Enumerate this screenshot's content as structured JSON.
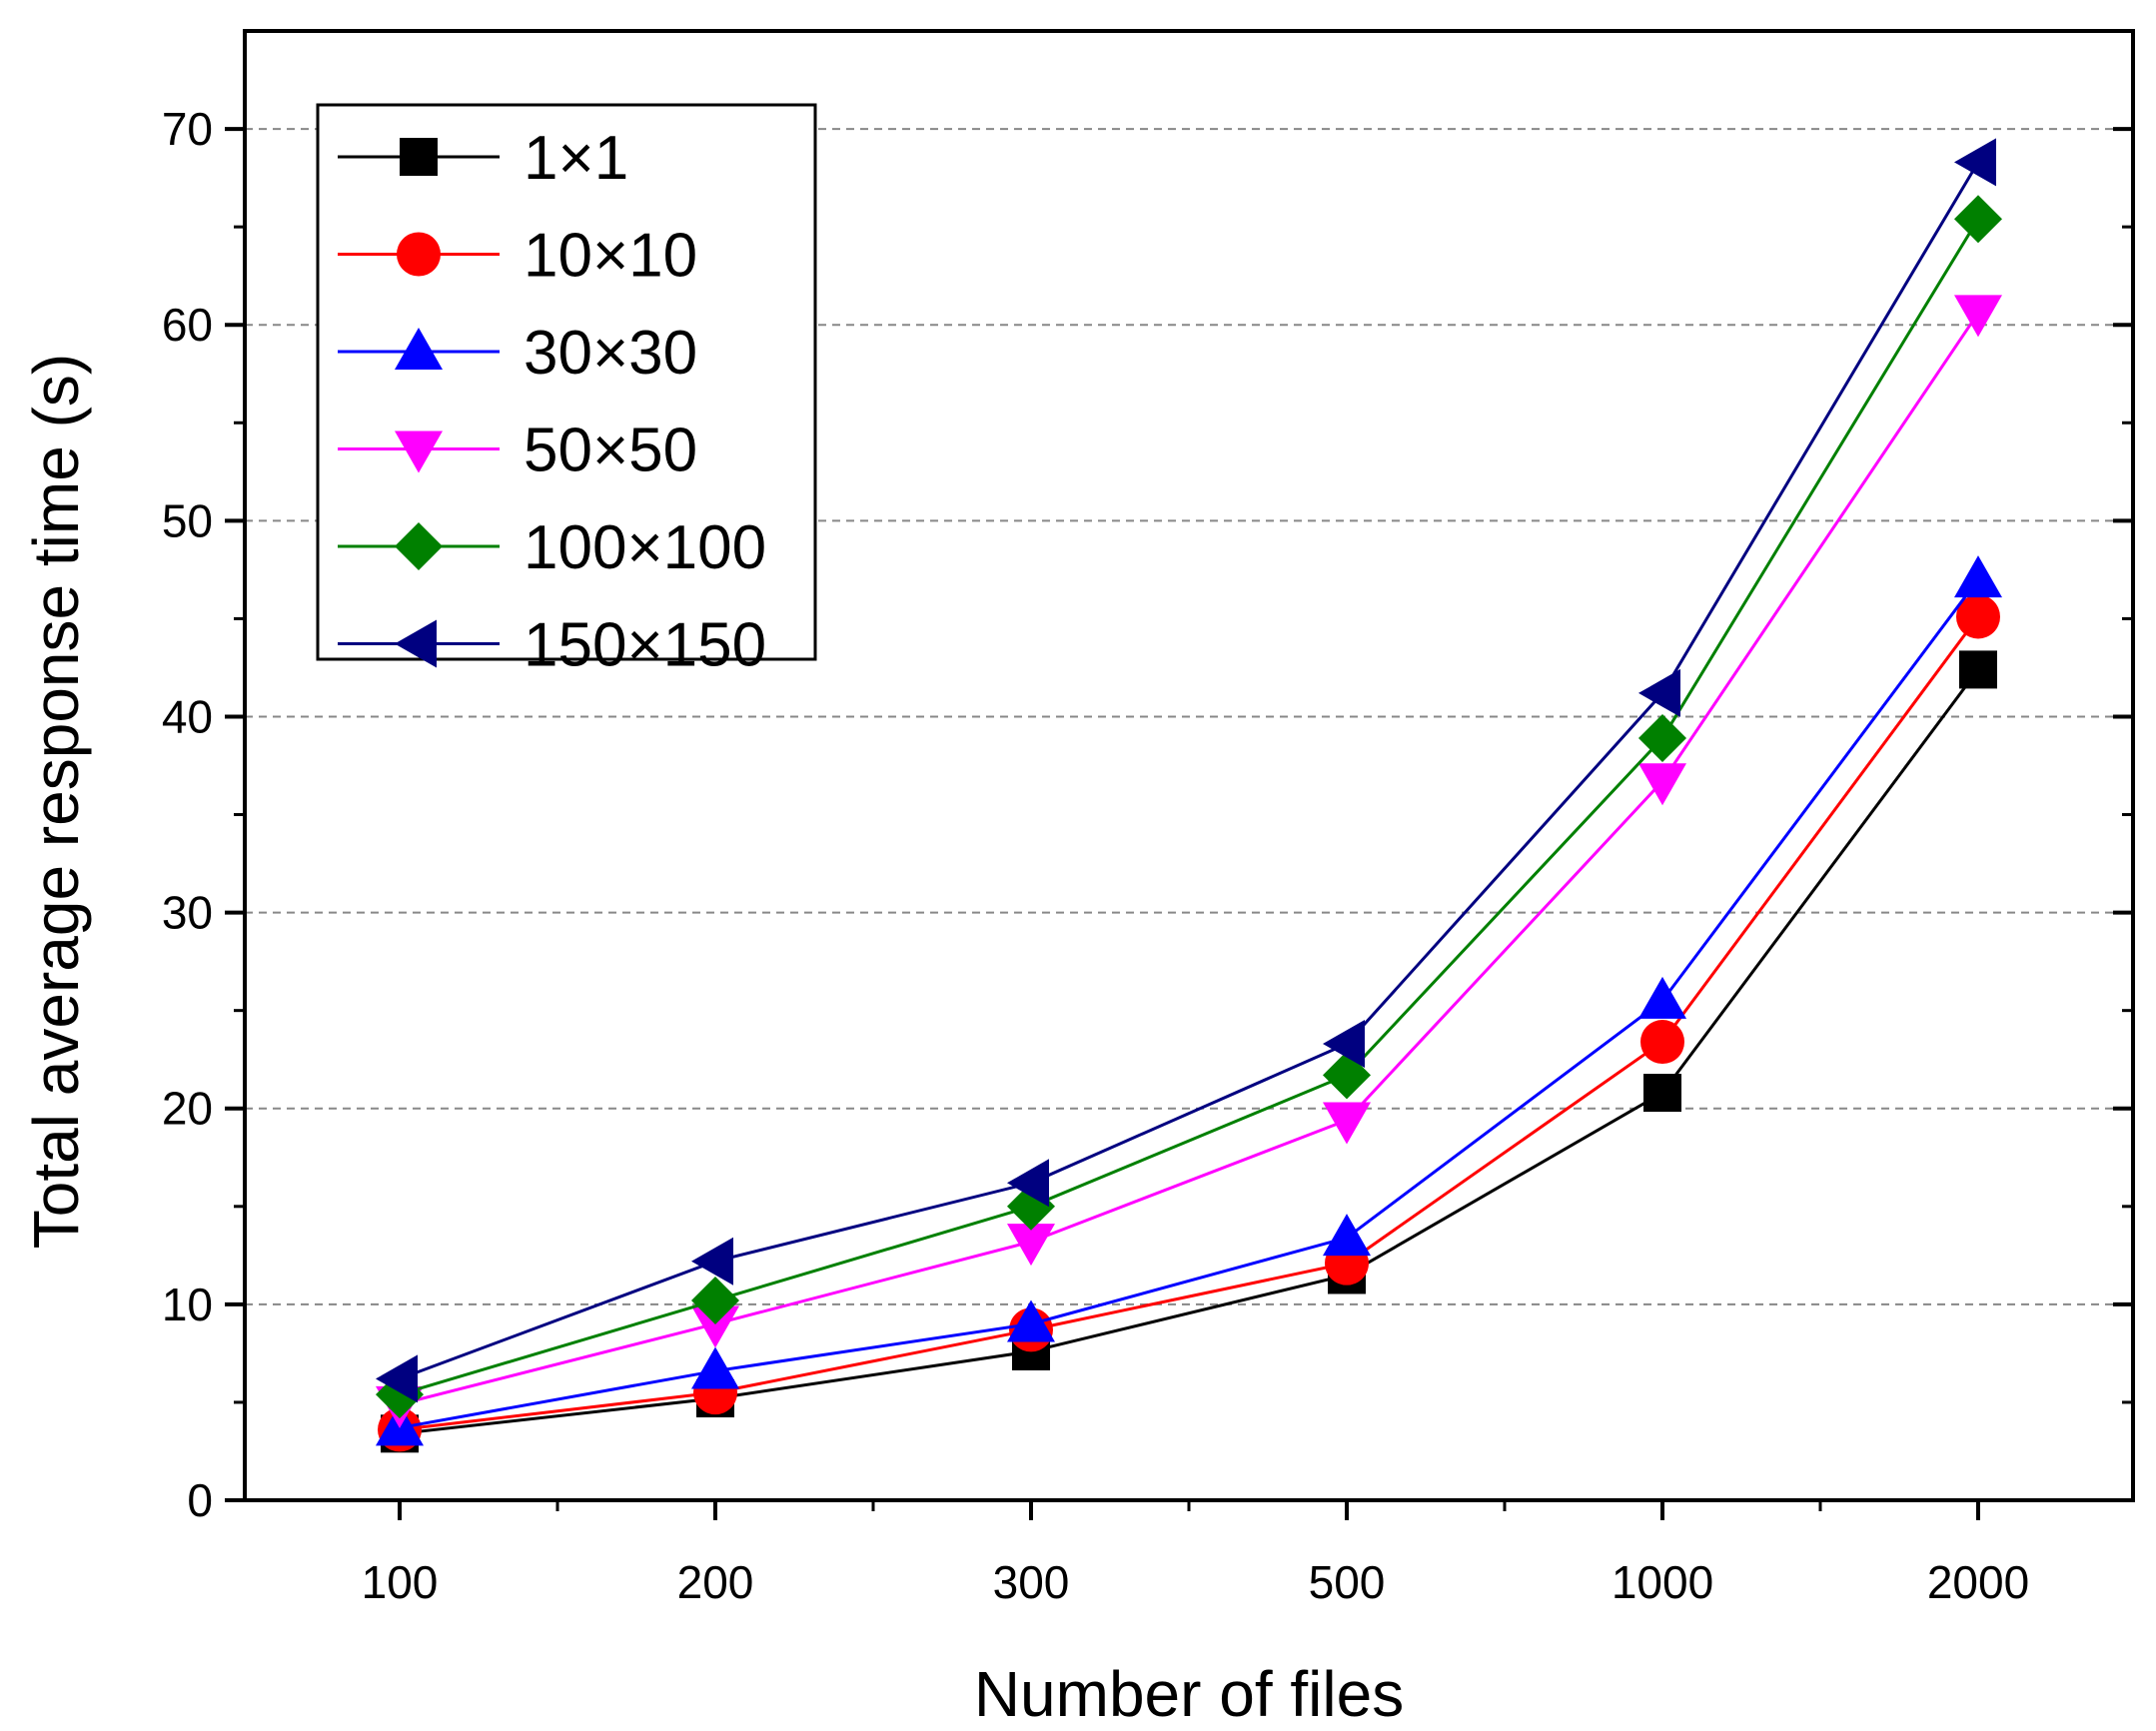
{
  "chart_data": {
    "type": "line",
    "title": "",
    "xlabel": "Number of files",
    "ylabel": "Total average response time (s)",
    "categories": [
      "100",
      "200",
      "300",
      "500",
      "1000",
      "2000"
    ],
    "ylim": [
      0,
      75
    ],
    "yticks": [
      0,
      10,
      20,
      30,
      40,
      50,
      60,
      70
    ],
    "grid": "horizontal dashed",
    "legend_position": "top-left",
    "series": [
      {
        "name": "1×1",
        "color": "#000000",
        "marker": "square",
        "values": [
          3.4,
          5.2,
          7.6,
          11.5,
          20.8,
          42.4
        ]
      },
      {
        "name": "10×10",
        "color": "#ff0000",
        "marker": "circle",
        "values": [
          3.6,
          5.5,
          8.7,
          12.1,
          23.4,
          45.1
        ]
      },
      {
        "name": "30×30",
        "color": "#0000ff",
        "marker": "triangle-up",
        "values": [
          3.7,
          6.6,
          9.0,
          13.4,
          25.5,
          47.0
        ]
      },
      {
        "name": "50×50",
        "color": "#ff00ff",
        "marker": "triangle-down",
        "values": [
          4.9,
          9.0,
          13.2,
          19.4,
          36.7,
          60.6
        ]
      },
      {
        "name": "100×100",
        "color": "#008000",
        "marker": "diamond",
        "values": [
          5.4,
          10.2,
          15.0,
          21.7,
          38.9,
          65.4
        ]
      },
      {
        "name": "150×150",
        "color": "#000080",
        "marker": "triangle-left",
        "values": [
          6.2,
          12.2,
          16.2,
          23.3,
          41.2,
          68.3
        ]
      }
    ]
  }
}
